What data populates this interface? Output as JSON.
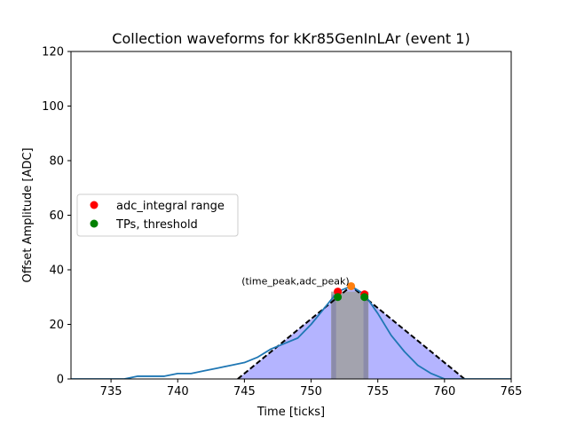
{
  "chart_data": {
    "type": "line",
    "title": "Collection waveforms for kKr85GenInLAr (event 1)",
    "xlabel": "Time [ticks]",
    "ylabel": "Offset Amplitude [ADC]",
    "xlim": [
      732,
      765
    ],
    "ylim": [
      0,
      120
    ],
    "xticks": [
      "735",
      "740",
      "745",
      "750",
      "755",
      "760",
      "765"
    ],
    "yticks": [
      "0",
      "20",
      "40",
      "60",
      "80",
      "100",
      "120"
    ],
    "grid": false,
    "legend_placement": "center-left",
    "waveform": {
      "color": "#1f77b4",
      "x": [
        732,
        733,
        734,
        735,
        736,
        737,
        738,
        739,
        740,
        741,
        742,
        743,
        744,
        745,
        746,
        747,
        748,
        749,
        750,
        751,
        752,
        753,
        754,
        755,
        756,
        757,
        758,
        759,
        760,
        761,
        762,
        763,
        764,
        765
      ],
      "y": [
        0,
        0,
        0,
        0,
        0,
        1,
        1,
        1,
        2,
        2,
        3,
        4,
        5,
        6,
        8,
        11,
        13,
        15,
        20,
        26,
        32,
        34,
        31,
        24,
        16,
        10,
        5,
        2,
        0,
        0,
        0,
        0,
        0,
        0
      ]
    },
    "triangle_fit": {
      "color": "#000000",
      "fill": "#b0b0ff",
      "x": [
        744.5,
        753,
        761.5
      ],
      "y": [
        0,
        34,
        0
      ]
    },
    "integral_band": {
      "color": "#a0a0a0",
      "x_start": 751.5,
      "x_end": 754.3,
      "height": 32
    },
    "threshold_band": {
      "color": "#8080a8",
      "width": 0.35,
      "height": 31,
      "x_centers": [
        751.7,
        754.1
      ]
    },
    "peak": {
      "x": 753,
      "y": 34,
      "color": "#ff7f0e",
      "annotation": "(time_peak,adc_peak)"
    },
    "series": [
      {
        "name": "adc_integral range",
        "color": "#ff0000",
        "points": [
          {
            "x": 752,
            "y": 32
          },
          {
            "x": 754,
            "y": 31
          }
        ]
      },
      {
        "name": "TPs, threshold",
        "color": "#008000",
        "points": [
          {
            "x": 752,
            "y": 30
          },
          {
            "x": 754,
            "y": 30
          }
        ]
      }
    ]
  }
}
